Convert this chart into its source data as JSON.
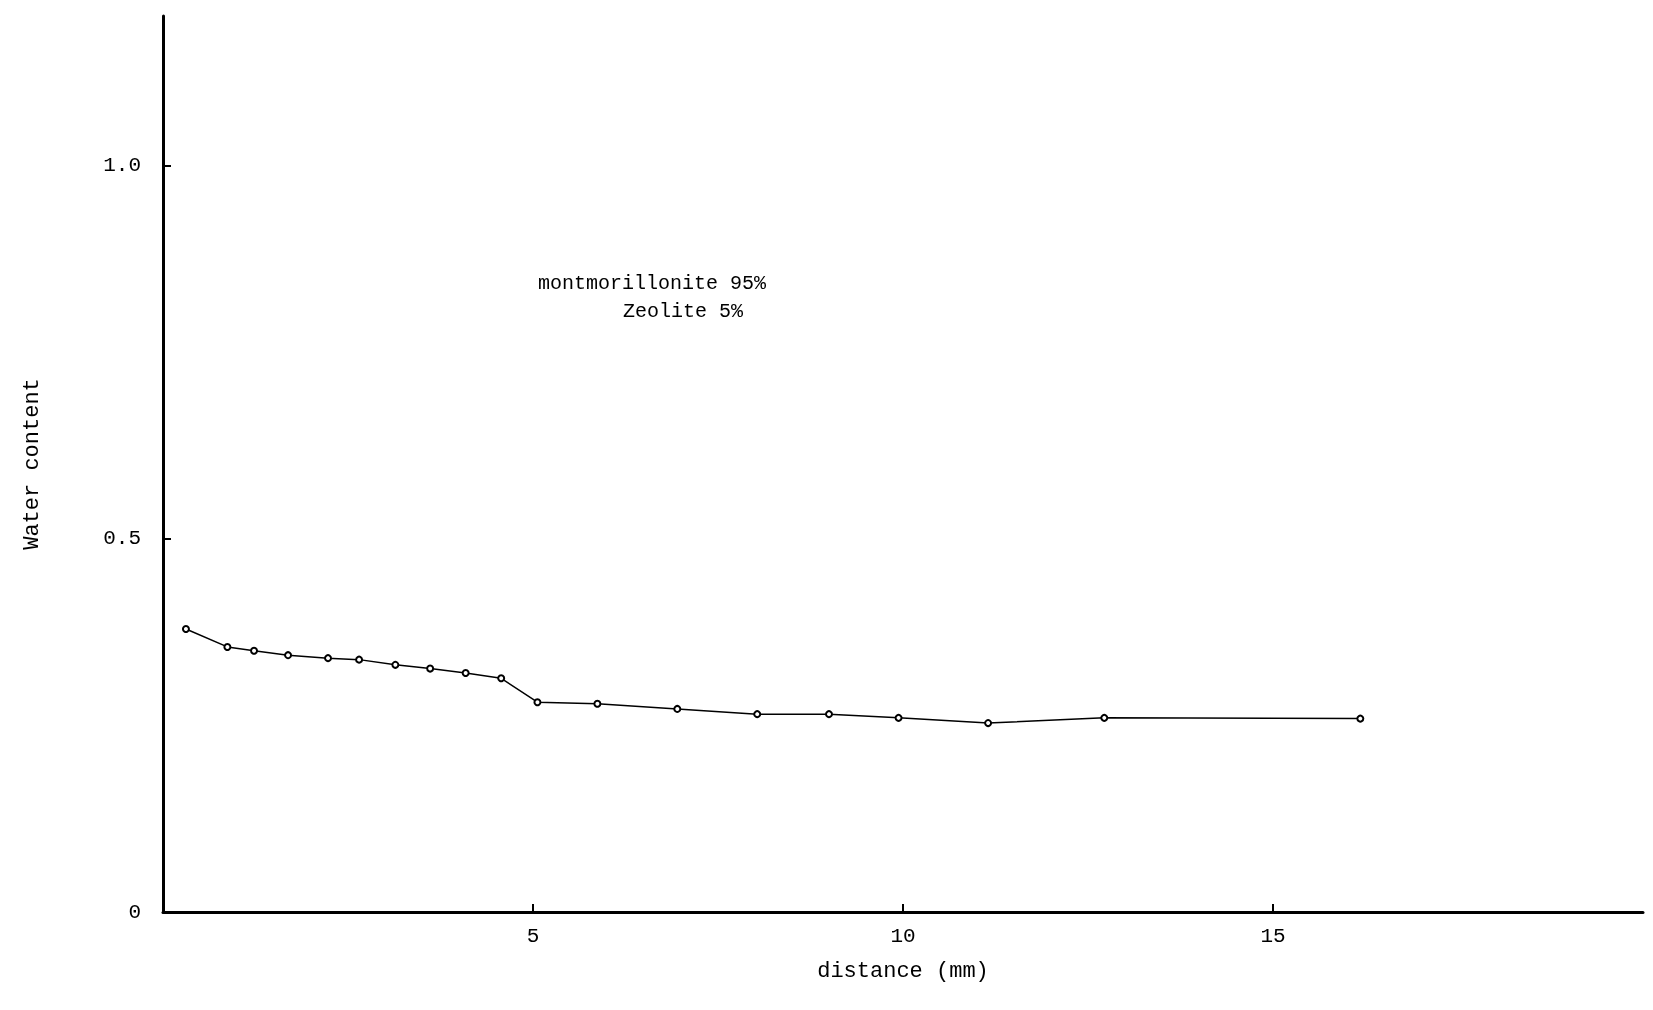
{
  "chart_data": {
    "type": "line",
    "xlabel": "distance (mm)",
    "ylabel": "Water content",
    "x": [
      0.31,
      0.87,
      1.23,
      1.69,
      2.23,
      2.65,
      3.14,
      3.61,
      4.09,
      4.57,
      5.06,
      5.87,
      6.95,
      8.03,
      9.0,
      9.94,
      11.15,
      12.72,
      16.18
    ],
    "series": [
      {
        "color": "#000000",
        "values": [
          0.379,
          0.355,
          0.35,
          0.344,
          0.34,
          0.338,
          0.331,
          0.326,
          0.32,
          0.313,
          0.281,
          0.279,
          0.272,
          0.265,
          0.265,
          0.26,
          0.253,
          0.26,
          0.259
        ]
      }
    ],
    "xlim": [
      0,
      20
    ],
    "xticks": [
      5,
      10,
      15
    ],
    "ylim": [
      0,
      1.2
    ],
    "yticks": [
      {
        "value": 0,
        "label": "0"
      },
      {
        "value": 0.5,
        "label": "0.5"
      },
      {
        "value": 1.0,
        "label": "1.0"
      }
    ],
    "annotations": [
      "montmorillonite 95%",
      "Zeolite 5%"
    ],
    "grid": false,
    "marker": "circle",
    "line_style": "solid"
  }
}
